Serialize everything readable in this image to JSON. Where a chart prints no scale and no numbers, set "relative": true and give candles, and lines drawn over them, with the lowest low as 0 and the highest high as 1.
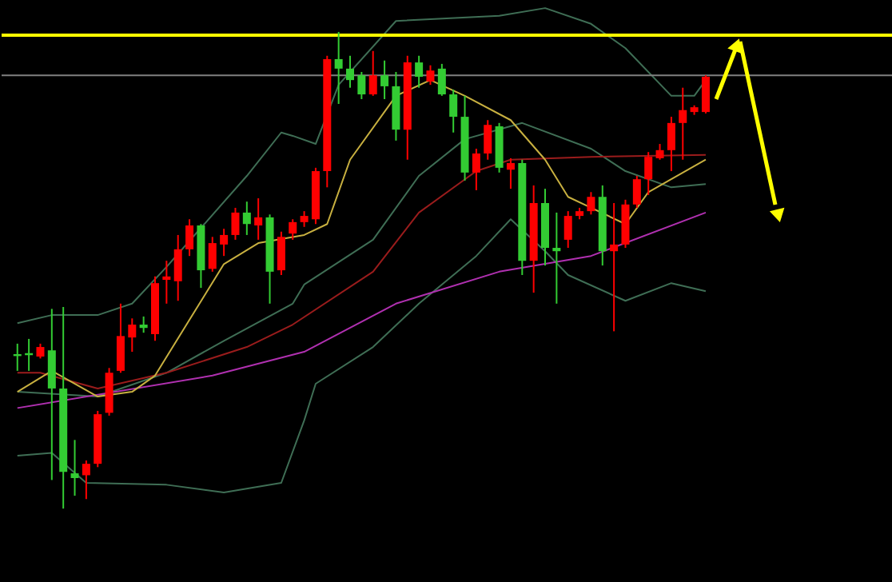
{
  "chart_data": {
    "type": "candlestick",
    "relative": true,
    "categories": [
      null,
      null,
      null,
      null,
      null,
      null,
      null,
      null,
      null,
      null,
      null,
      null,
      null,
      null,
      null,
      null,
      null,
      null,
      null,
      null,
      null,
      null,
      null,
      null,
      null,
      null,
      null,
      null,
      null,
      null,
      null,
      null,
      null,
      null,
      null,
      null,
      null,
      null,
      null,
      null,
      null,
      null,
      null,
      null,
      null,
      null,
      null,
      null,
      null,
      null,
      null,
      null,
      null,
      null,
      null,
      null,
      null,
      null,
      null,
      null,
      null
    ],
    "ohlc": [
      [
        0.324,
        0.346,
        0.289,
        0.32
      ],
      [
        0.326,
        0.356,
        0.289,
        0.322
      ],
      [
        0.319,
        0.346,
        0.315,
        0.339
      ],
      [
        0.332,
        0.419,
        0.06,
        0.252
      ],
      [
        0.252,
        0.423,
        0.0,
        0.077
      ],
      [
        0.074,
        0.144,
        0.027,
        0.064
      ],
      [
        0.07,
        0.101,
        0.02,
        0.094
      ],
      [
        0.094,
        0.205,
        0.087,
        0.198
      ],
      [
        0.201,
        0.295,
        0.195,
        0.285
      ],
      [
        0.289,
        0.43,
        0.285,
        0.362
      ],
      [
        0.359,
        0.399,
        0.329,
        0.386
      ],
      [
        0.386,
        0.403,
        0.369,
        0.379
      ],
      [
        0.366,
        0.487,
        0.352,
        0.473
      ],
      [
        0.48,
        0.52,
        0.43,
        0.487
      ],
      [
        0.477,
        0.574,
        0.436,
        0.544
      ],
      [
        0.544,
        0.607,
        0.53,
        0.594
      ],
      [
        0.594,
        0.597,
        0.463,
        0.5
      ],
      [
        0.503,
        0.57,
        0.497,
        0.557
      ],
      [
        0.554,
        0.587,
        0.53,
        0.574
      ],
      [
        0.574,
        0.631,
        0.564,
        0.621
      ],
      [
        0.621,
        0.644,
        0.574,
        0.597
      ],
      [
        0.594,
        0.651,
        0.564,
        0.611
      ],
      [
        0.611,
        0.617,
        0.43,
        0.497
      ],
      [
        0.5,
        0.581,
        0.49,
        0.57
      ],
      [
        0.577,
        0.607,
        0.564,
        0.601
      ],
      [
        0.601,
        0.624,
        0.591,
        0.614
      ],
      [
        0.607,
        0.715,
        0.597,
        0.708
      ],
      [
        0.708,
        0.95,
        0.674,
        0.943
      ],
      [
        0.943,
        1.0,
        0.849,
        0.923
      ],
      [
        0.923,
        0.95,
        0.883,
        0.899
      ],
      [
        0.909,
        0.916,
        0.859,
        0.869
      ],
      [
        0.869,
        0.96,
        0.866,
        0.909
      ],
      [
        0.909,
        0.94,
        0.859,
        0.886
      ],
      [
        0.886,
        0.916,
        0.772,
        0.795
      ],
      [
        0.795,
        0.95,
        0.732,
        0.936
      ],
      [
        0.936,
        0.95,
        0.883,
        0.906
      ],
      [
        0.896,
        0.93,
        0.889,
        0.919
      ],
      [
        0.923,
        0.933,
        0.866,
        0.869
      ],
      [
        0.869,
        0.879,
        0.789,
        0.822
      ],
      [
        0.822,
        0.866,
        0.688,
        0.705
      ],
      [
        0.705,
        0.755,
        0.668,
        0.745
      ],
      [
        0.745,
        0.815,
        0.732,
        0.805
      ],
      [
        0.802,
        0.809,
        0.705,
        0.715
      ],
      [
        0.711,
        0.735,
        0.671,
        0.725
      ],
      [
        0.725,
        0.732,
        0.49,
        0.52
      ],
      [
        0.52,
        0.678,
        0.453,
        0.641
      ],
      [
        0.641,
        0.671,
        0.51,
        0.547
      ],
      [
        0.547,
        0.621,
        0.43,
        0.54
      ],
      [
        0.564,
        0.624,
        0.547,
        0.614
      ],
      [
        0.614,
        0.631,
        0.607,
        0.624
      ],
      [
        0.624,
        0.664,
        0.617,
        0.654
      ],
      [
        0.654,
        0.678,
        0.51,
        0.54
      ],
      [
        0.54,
        0.641,
        0.372,
        0.554
      ],
      [
        0.554,
        0.648,
        0.547,
        0.638
      ],
      [
        0.638,
        0.698,
        0.631,
        0.691
      ],
      [
        0.691,
        0.748,
        0.658,
        0.738
      ],
      [
        0.735,
        0.765,
        0.732,
        0.752
      ],
      [
        0.752,
        0.822,
        0.708,
        0.809
      ],
      [
        0.809,
        0.883,
        0.732,
        0.836
      ],
      [
        0.832,
        0.846,
        0.826,
        0.842
      ],
      [
        0.832,
        0.909,
        0.829,
        0.906
      ]
    ],
    "colors": [
      "#33cc33",
      "#33cc33",
      "#ff0000",
      "#33cc33",
      "#33cc33",
      "#33cc33",
      "#ff0000",
      "#ff0000",
      "#ff0000",
      "#ff0000",
      "#ff0000",
      "#33cc33",
      "#ff0000",
      "#ff0000",
      "#ff0000",
      "#ff0000",
      "#33cc33",
      "#ff0000",
      "#ff0000",
      "#ff0000",
      "#33cc33",
      "#ff0000",
      "#33cc33",
      "#ff0000",
      "#ff0000",
      "#ff0000",
      "#ff0000",
      "#ff0000",
      "#33cc33",
      "#33cc33",
      "#33cc33",
      "#ff0000",
      "#33cc33",
      "#33cc33",
      "#ff0000",
      "#33cc33",
      "#ff0000",
      "#33cc33",
      "#33cc33",
      "#33cc33",
      "#ff0000",
      "#ff0000",
      "#33cc33",
      "#ff0000",
      "#33cc33",
      "#ff0000",
      "#33cc33",
      "#33cc33",
      "#ff0000",
      "#ff0000",
      "#ff0000",
      "#33cc33",
      "#ff0000",
      "#ff0000",
      "#ff0000",
      "#ff0000",
      "#ff0000",
      "#ff0000",
      "#ff0000",
      "#ff0000",
      "#ff0000"
    ],
    "series": [
      {
        "type": "line",
        "color": "#3f6e55",
        "values": [
          0.389,
          null,
          null,
          0.406,
          null,
          null,
          null,
          0.406,
          null,
          null,
          0.43,
          null,
          null,
          0.507,
          null,
          null,
          null,
          null,
          null,
          null,
          0.698,
          null,
          null,
          0.789,
          0.782,
          null,
          0.765,
          null,
          0.889,
          null,
          null,
          null,
          null,
          1.023,
          null,
          null,
          null,
          null,
          null,
          null,
          null,
          null,
          1.034,
          null,
          null,
          null,
          1.05,
          null,
          null,
          null,
          1.017,
          null,
          null,
          0.966,
          null,
          null,
          null,
          0.866,
          null,
          0.866,
          0.899
        ]
      },
      {
        "type": "line",
        "color": "#3f6e55",
        "values": [
          0.245,
          null,
          null,
          null,
          null,
          null,
          null,
          0.235,
          null,
          null,
          null,
          null,
          null,
          0.285,
          null,
          null,
          null,
          null,
          0.352,
          null,
          null,
          null,
          null,
          null,
          0.43,
          0.47,
          null,
          null,
          null,
          null,
          null,
          0.564,
          null,
          null,
          null,
          0.698,
          null,
          null,
          null,
          0.775,
          null,
          null,
          null,
          null,
          0.809,
          null,
          null,
          null,
          null,
          null,
          0.755,
          null,
          null,
          0.708,
          null,
          null,
          null,
          0.674,
          null,
          null,
          0.681
        ]
      },
      {
        "type": "line",
        "color": "#3f6e55",
        "values": [
          0.111,
          null,
          null,
          0.117,
          null,
          null,
          0.054,
          null,
          null,
          null,
          null,
          null,
          null,
          0.05,
          null,
          null,
          null,
          null,
          0.034,
          null,
          null,
          null,
          null,
          0.054,
          null,
          0.185,
          0.262,
          null,
          null,
          null,
          null,
          0.339,
          null,
          null,
          null,
          0.43,
          null,
          null,
          null,
          null,
          0.53,
          null,
          null,
          0.607,
          null,
          null,
          0.54,
          null,
          0.49,
          null,
          null,
          null,
          null,
          0.436,
          null,
          null,
          null,
          0.473,
          null,
          null,
          0.456
        ]
      },
      {
        "type": "line",
        "color": "#9a1c1c",
        "values": [
          0.285,
          null,
          0.285,
          null,
          null,
          null,
          null,
          0.252,
          null,
          null,
          null,
          null,
          null,
          0.285,
          null,
          null,
          null,
          null,
          null,
          null,
          0.339,
          null,
          null,
          null,
          0.386,
          null,
          null,
          null,
          null,
          null,
          null,
          0.497,
          null,
          null,
          null,
          0.621,
          null,
          null,
          null,
          null,
          0.708,
          null,
          null,
          0.732,
          null,
          null,
          null,
          null,
          null,
          null,
          0.738,
          null,
          null,
          null,
          null,
          null,
          null,
          null,
          null,
          null,
          0.742
        ]
      },
      {
        "type": "line",
        "color": "#b030b0",
        "values": [
          0.211,
          null,
          null,
          null,
          null,
          null,
          null,
          null,
          null,
          null,
          null,
          null,
          null,
          null,
          null,
          null,
          null,
          0.279,
          null,
          null,
          null,
          null,
          null,
          null,
          null,
          0.329,
          null,
          null,
          null,
          null,
          null,
          null,
          null,
          0.43,
          null,
          null,
          null,
          null,
          null,
          null,
          null,
          null,
          0.497,
          null,
          null,
          null,
          null,
          null,
          null,
          null,
          0.53,
          null,
          null,
          null,
          null,
          null,
          null,
          null,
          null,
          null,
          0.621
        ]
      },
      {
        "type": "line",
        "color": "#c8b040",
        "values": [
          0.245,
          null,
          null,
          0.289,
          null,
          null,
          null,
          0.235,
          null,
          null,
          0.245,
          null,
          0.279,
          null,
          null,
          0.396,
          null,
          null,
          0.513,
          null,
          null,
          0.557,
          null,
          null,
          null,
          0.574,
          null,
          0.597,
          null,
          0.732,
          null,
          null,
          null,
          0.866,
          null,
          null,
          0.899,
          null,
          null,
          0.866,
          null,
          null,
          null,
          0.815,
          null,
          null,
          0.732,
          null,
          0.654,
          null,
          null,
          null,
          null,
          0.597,
          null,
          0.664,
          null,
          null,
          null,
          null,
          0.732
        ]
      }
    ],
    "ref_lines": [
      {
        "axis": "y",
        "value": 0.993,
        "color": "#ffff00"
      },
      {
        "axis": "y",
        "value": 0.909,
        "color": "#808080"
      }
    ]
  }
}
